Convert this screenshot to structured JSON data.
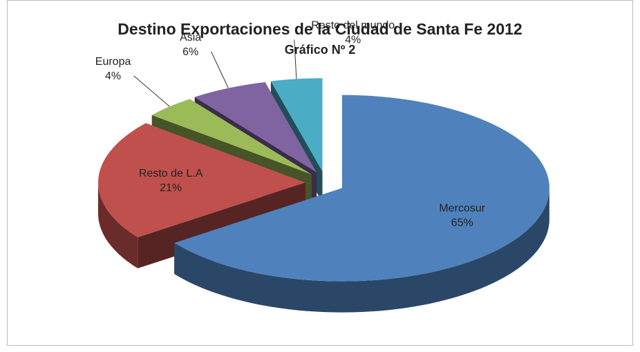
{
  "chart_data": {
    "type": "pie",
    "title": "Destino Exportaciones de la Ciudad de Santa Fe 2012",
    "subtitle": "Gráfico Nº 2",
    "categories": [
      "Mercosur",
      "Resto de L.A",
      "Europa",
      "Asia",
      "Resto del mundo"
    ],
    "values": [
      65,
      21,
      4,
      6,
      4
    ],
    "value_labels": [
      "65%",
      "21%",
      "4%",
      "6%",
      "4%"
    ],
    "colors": [
      "#4f81bd",
      "#c0504d",
      "#9bbb59",
      "#8064a2",
      "#4bacc6"
    ]
  }
}
